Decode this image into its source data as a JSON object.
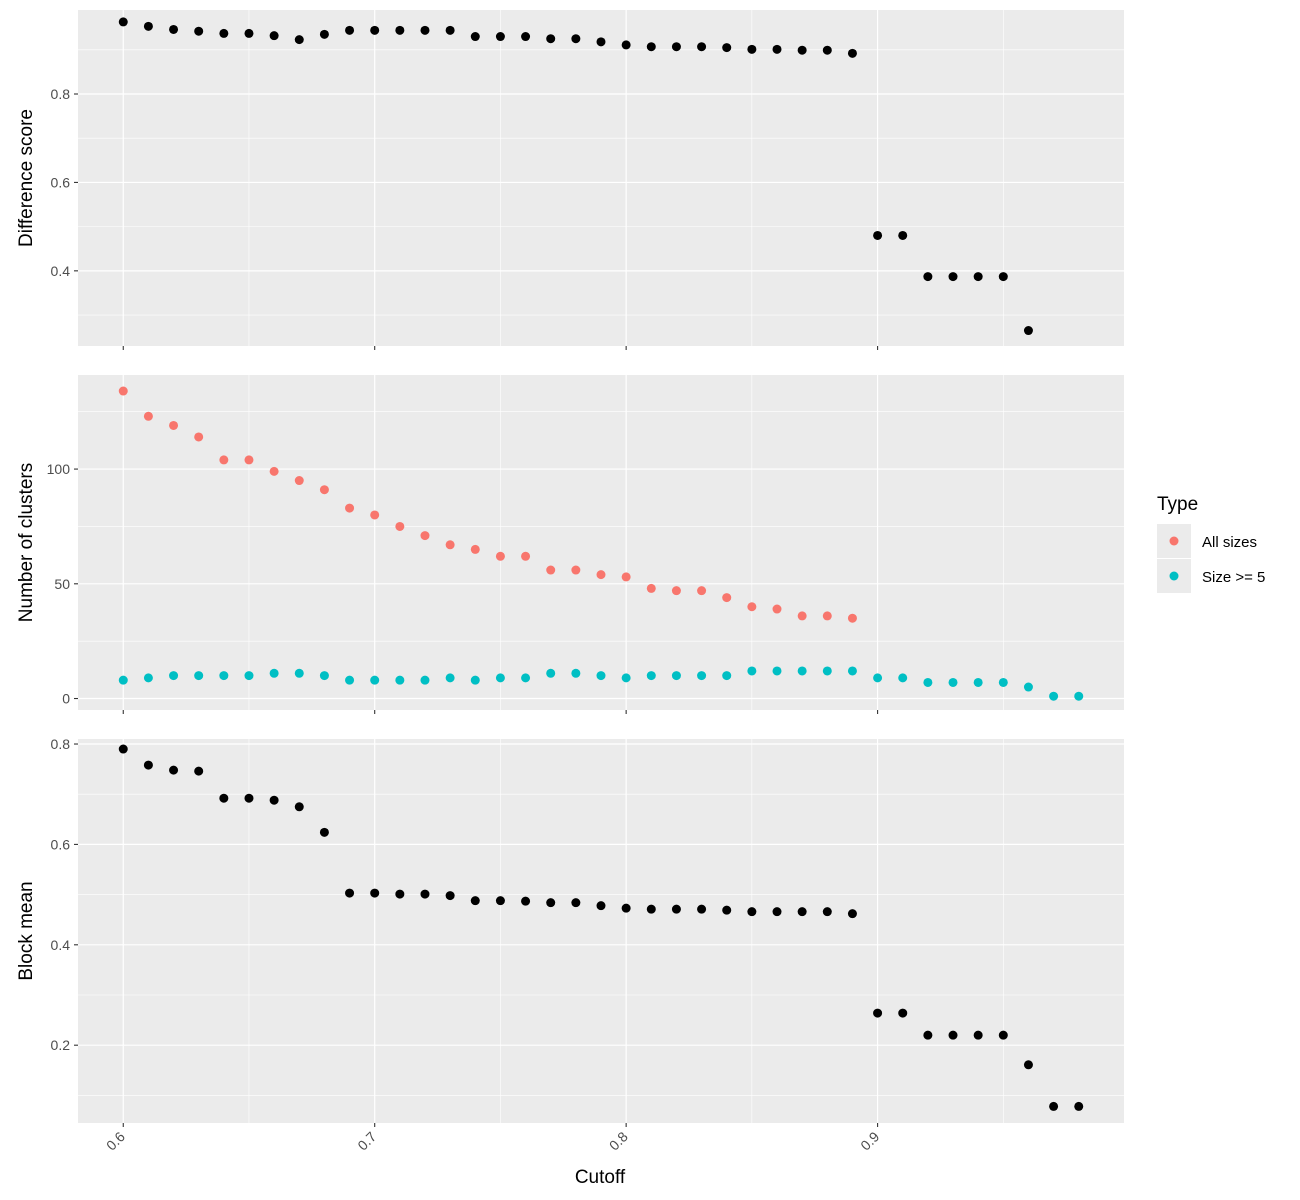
{
  "colors": {
    "panel_bg": "#ebebeb",
    "grid_major": "#ffffff",
    "black_points": "#000000",
    "all_sizes": "#f8766d",
    "size_ge_5": "#00bfc4"
  },
  "legend": {
    "title": "Type",
    "items": [
      {
        "label": "All sizes",
        "color": "#f8766d"
      },
      {
        "label": "Size >= 5",
        "color": "#00bfc4"
      }
    ]
  },
  "chart_data": {
    "type": "scatter",
    "xlabel": "Cutoff",
    "x_ticks": [
      "0.6",
      "0.7",
      "0.8",
      "0.9"
    ],
    "x_tick_values": [
      0.6,
      0.7,
      0.8,
      0.9
    ],
    "xlim": [
      0.582,
      0.998
    ],
    "grid": true,
    "legend_position": "right",
    "panels": [
      {
        "ylabel": "Difference score",
        "ylim": [
          0.23,
          0.99
        ],
        "y_ticks": [
          0.4,
          0.6,
          0.8
        ],
        "y_tick_labels": [
          "0.4",
          "0.6",
          "0.8"
        ],
        "series": [
          {
            "color": "#000000",
            "x": [
              0.6,
              0.61,
              0.62,
              0.63,
              0.64,
              0.65,
              0.66,
              0.67,
              0.68,
              0.69,
              0.7,
              0.71,
              0.72,
              0.73,
              0.74,
              0.75,
              0.76,
              0.77,
              0.78,
              0.79,
              0.8,
              0.81,
              0.82,
              0.83,
              0.84,
              0.85,
              0.86,
              0.87,
              0.88,
              0.89,
              0.9,
              0.91,
              0.92,
              0.93,
              0.94,
              0.95,
              0.96
            ],
            "y": [
              0.963,
              0.953,
              0.946,
              0.942,
              0.937,
              0.937,
              0.932,
              0.923,
              0.935,
              0.944,
              0.944,
              0.944,
              0.944,
              0.944,
              0.93,
              0.93,
              0.93,
              0.925,
              0.925,
              0.918,
              0.911,
              0.907,
              0.907,
              0.907,
              0.905,
              0.901,
              0.901,
              0.899,
              0.899,
              0.892,
              0.48,
              0.48,
              0.387,
              0.387,
              0.387,
              0.387,
              0.265
            ]
          }
        ]
      },
      {
        "ylabel": "Number of clusters",
        "ylim": [
          -5,
          141
        ],
        "y_ticks": [
          0,
          50,
          100
        ],
        "y_tick_labels": [
          "0",
          "50",
          "100"
        ],
        "series": [
          {
            "name": "All sizes",
            "color": "#f8766d",
            "x": [
              0.6,
              0.61,
              0.62,
              0.63,
              0.64,
              0.65,
              0.66,
              0.67,
              0.68,
              0.69,
              0.7,
              0.71,
              0.72,
              0.73,
              0.74,
              0.75,
              0.76,
              0.77,
              0.78,
              0.79,
              0.8,
              0.81,
              0.82,
              0.83,
              0.84,
              0.85,
              0.86,
              0.87,
              0.88,
              0.89
            ],
            "y": [
              134,
              123,
              119,
              114,
              104,
              104,
              99,
              95,
              91,
              83,
              80,
              75,
              71,
              67,
              65,
              62,
              62,
              56,
              56,
              54,
              53,
              48,
              47,
              47,
              44,
              40,
              39,
              36,
              36,
              35
            ]
          },
          {
            "name": "Size >= 5",
            "color": "#00bfc4",
            "x": [
              0.6,
              0.61,
              0.62,
              0.63,
              0.64,
              0.65,
              0.66,
              0.67,
              0.68,
              0.69,
              0.7,
              0.71,
              0.72,
              0.73,
              0.74,
              0.75,
              0.76,
              0.77,
              0.78,
              0.79,
              0.8,
              0.81,
              0.82,
              0.83,
              0.84,
              0.85,
              0.86,
              0.87,
              0.88,
              0.89,
              0.9,
              0.91,
              0.92,
              0.93,
              0.94,
              0.95,
              0.96,
              0.97,
              0.98
            ],
            "y": [
              8,
              9,
              10,
              10,
              10,
              10,
              11,
              11,
              10,
              8,
              8,
              8,
              8,
              9,
              8,
              9,
              9,
              11,
              11,
              10,
              9,
              10,
              10,
              10,
              10,
              12,
              12,
              12,
              12,
              12,
              9,
              9,
              7,
              7,
              7,
              7,
              5,
              1,
              1
            ]
          }
        ]
      },
      {
        "ylabel": "Block mean",
        "ylim": [
          0.045,
          0.81
        ],
        "y_ticks": [
          0.2,
          0.4,
          0.6,
          0.8
        ],
        "y_tick_labels": [
          "0.2",
          "0.4",
          "0.6",
          "0.8"
        ],
        "series": [
          {
            "color": "#000000",
            "x": [
              0.6,
              0.61,
              0.62,
              0.63,
              0.64,
              0.65,
              0.66,
              0.67,
              0.68,
              0.69,
              0.7,
              0.71,
              0.72,
              0.73,
              0.74,
              0.75,
              0.76,
              0.77,
              0.78,
              0.79,
              0.8,
              0.81,
              0.82,
              0.83,
              0.84,
              0.85,
              0.86,
              0.87,
              0.88,
              0.89,
              0.9,
              0.91,
              0.92,
              0.93,
              0.94,
              0.95,
              0.96,
              0.97,
              0.98
            ],
            "y": [
              0.79,
              0.758,
              0.748,
              0.746,
              0.692,
              0.692,
              0.688,
              0.675,
              0.624,
              0.503,
              0.503,
              0.501,
              0.501,
              0.498,
              0.488,
              0.488,
              0.487,
              0.484,
              0.484,
              0.478,
              0.473,
              0.471,
              0.471,
              0.471,
              0.469,
              0.466,
              0.466,
              0.466,
              0.466,
              0.462,
              0.264,
              0.264,
              0.22,
              0.22,
              0.22,
              0.22,
              0.161,
              0.078,
              0.078
            ]
          }
        ]
      }
    ]
  }
}
